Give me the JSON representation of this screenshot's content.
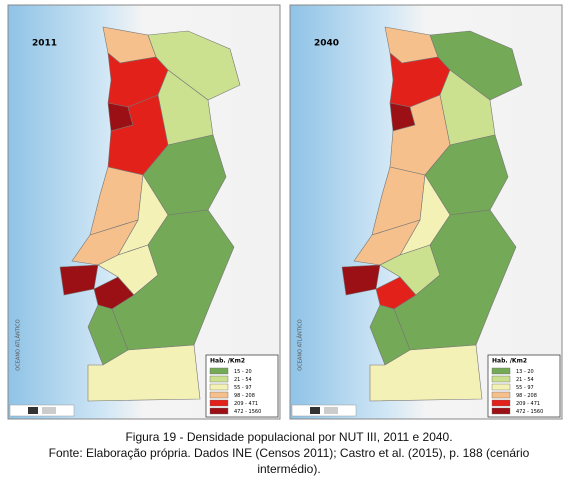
{
  "panels": [
    {
      "year": "2011",
      "ocean_label": "OCEANO ATLÂNTICO",
      "legend": {
        "title": "Hab. /Km2",
        "items": [
          {
            "label": "15 - 20",
            "color": "#74a957"
          },
          {
            "label": "21 - 54",
            "color": "#cbe18f"
          },
          {
            "label": "55 - 97",
            "color": "#f3f1b5"
          },
          {
            "label": "98 - 208",
            "color": "#f5c08c"
          },
          {
            "label": "209 - 471",
            "color": "#e3211b"
          },
          {
            "label": "472 - 1560",
            "color": "#9a1015"
          }
        ]
      }
    },
    {
      "year": "2040",
      "ocean_label": "OCEANO ATLÂNTICO",
      "legend": {
        "title": "Hab. /Km2",
        "items": [
          {
            "label": "13 - 20",
            "color": "#74a957"
          },
          {
            "label": "21 - 54",
            "color": "#cbe18f"
          },
          {
            "label": "55 - 97",
            "color": "#f3f1b5"
          },
          {
            "label": "98 - 208",
            "color": "#f5c08c"
          },
          {
            "label": "209 - 471",
            "color": "#e3211b"
          },
          {
            "label": "472 - 1560",
            "color": "#9a1015"
          }
        ]
      }
    }
  ],
  "caption": [
    "Figura 19 - Densidade populacional por NUT III, 2011 e 2040.",
    "Fonte: Elaboração própria. Dados INE (Censos 2011); Castro et al. (2015), p. 188 (cenário",
    "intermédio)."
  ]
}
